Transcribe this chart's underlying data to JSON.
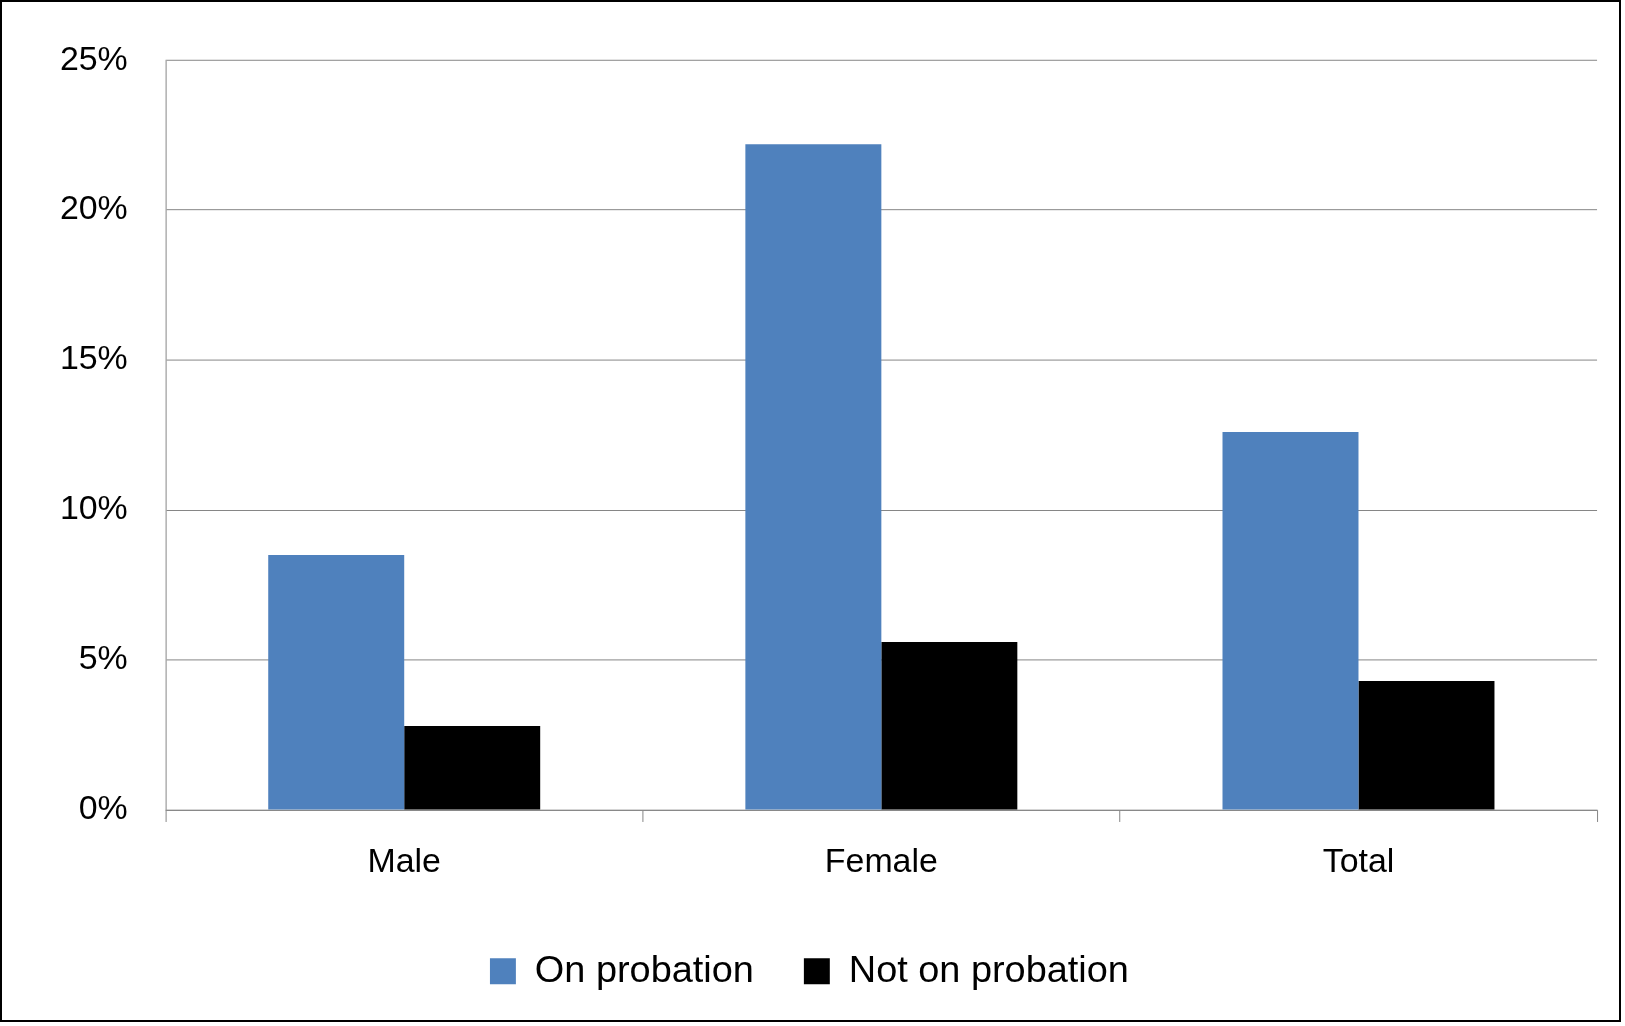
{
  "chart_data": {
    "type": "bar",
    "categories": [
      "Male",
      "Female",
      "Total"
    ],
    "series": [
      {
        "name": "On probation",
        "color": "#4f81bd",
        "values": [
          8.5,
          22.2,
          12.6
        ]
      },
      {
        "name": "Not on probation",
        "color": "#000000",
        "values": [
          2.8,
          5.6,
          4.3
        ]
      }
    ],
    "ylim": [
      0,
      25
    ],
    "yticks": [
      {
        "value": 0,
        "label": "0%"
      },
      {
        "value": 5,
        "label": "5%"
      },
      {
        "value": 10,
        "label": "10%"
      },
      {
        "value": 15,
        "label": "15%"
      },
      {
        "value": 20,
        "label": "20%"
      },
      {
        "value": 25,
        "label": "25%"
      }
    ],
    "grid": "y",
    "legend": "bottom"
  }
}
